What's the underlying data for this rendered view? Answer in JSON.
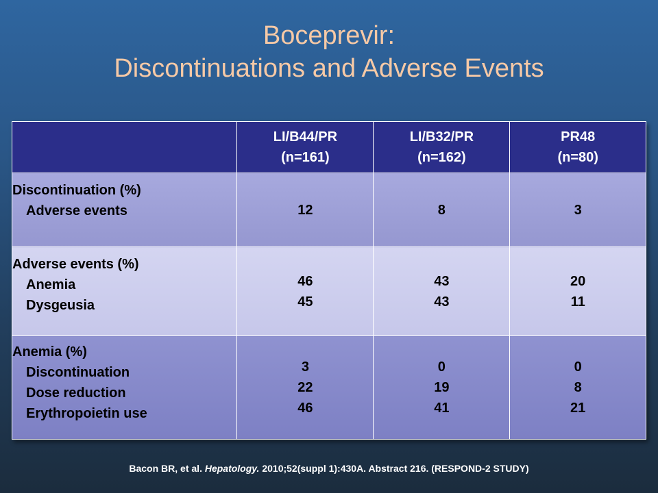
{
  "slide": {
    "title_line1": "Boceprevir:",
    "title_line2": "Discontinuations and Adverse Events"
  },
  "table": {
    "columns": [
      {
        "name": "LI/B44/PR",
        "n": "(n=161)"
      },
      {
        "name": "LI/B32/PR",
        "n": "(n=162)"
      },
      {
        "name": "PR48",
        "n": "(n=80)"
      }
    ],
    "rows": [
      {
        "heading": "Discontinuation (%)",
        "items": [
          "Adverse events"
        ],
        "values": [
          [
            "12"
          ],
          [
            "8"
          ],
          [
            "3"
          ]
        ]
      },
      {
        "heading": "Adverse events (%)",
        "items": [
          "Anemia",
          "Dysgeusia"
        ],
        "values": [
          [
            "46",
            "45"
          ],
          [
            "43",
            "43"
          ],
          [
            "20",
            "11"
          ]
        ]
      },
      {
        "heading": "Anemia (%)",
        "items": [
          "Discontinuation",
          "Dose reduction",
          "Erythropoietin use"
        ],
        "values": [
          [
            "3",
            "22",
            "46"
          ],
          [
            "0",
            "19",
            "41"
          ],
          [
            "0",
            "8",
            "21"
          ]
        ]
      }
    ]
  },
  "citation": {
    "before": "Bacon BR, et al. ",
    "journal": "Hepatology.",
    "after": " 2010;52(suppl 1):430A. Abstract 216. (RESPOND-2 STUDY)"
  }
}
